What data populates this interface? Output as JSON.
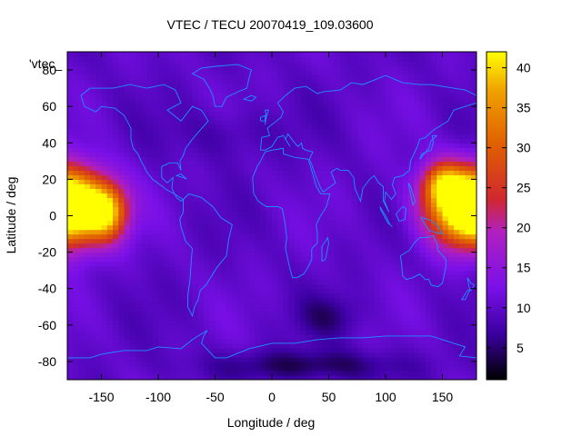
{
  "chart_data": {
    "type": "heatmap",
    "title": "VTEC / TECU 20070419_109.03600",
    "xlabel": "Longitude / deg",
    "ylabel": "Latitude / deg",
    "xlim": [
      -180,
      180
    ],
    "ylim": [
      -90,
      90
    ],
    "x_ticks": [
      -150,
      -100,
      -50,
      0,
      50,
      100,
      150
    ],
    "y_ticks": [
      -80,
      -60,
      -40,
      -20,
      0,
      20,
      40,
      60,
      80
    ],
    "legend_entry": "'vtec_",
    "colorbar": {
      "range": [
        1,
        42
      ],
      "ticks": [
        5,
        10,
        15,
        20,
        25,
        30,
        35,
        40
      ],
      "colormap": [
        "#000000",
        "#3a00a0",
        "#7a10e8",
        "#b020c0",
        "#d02830",
        "#e06000",
        "#f0a000",
        "#ffff00"
      ]
    },
    "overlay": "coastlines",
    "coastline_color": "#1e90ff",
    "field": {
      "background_vtec": 10,
      "enhancements": [
        {
          "lon": -175,
          "lat": 5,
          "sigma_lon": 25,
          "sigma_lat": 14,
          "peak": 38
        },
        {
          "lon": -145,
          "lat": 2,
          "sigma_lon": 12,
          "sigma_lat": 10,
          "peak": 30
        },
        {
          "lon": 170,
          "lat": 5,
          "sigma_lon": 25,
          "sigma_lat": 14,
          "peak": 36
        },
        {
          "lon": 150,
          "lat": 18,
          "sigma_lon": 12,
          "sigma_lat": 8,
          "peak": 28
        }
      ],
      "depletions": [
        {
          "lon": 30,
          "lat": -82,
          "sigma_lon": 60,
          "sigma_lat": 6,
          "depth": 6
        },
        {
          "lon": 50,
          "lat": -55,
          "sigma_lon": 20,
          "sigma_lat": 8,
          "depth": 4
        },
        {
          "lon": -40,
          "lat": 45,
          "sigma_lon": 30,
          "sigma_lat": 10,
          "depth": 3
        }
      ]
    }
  }
}
